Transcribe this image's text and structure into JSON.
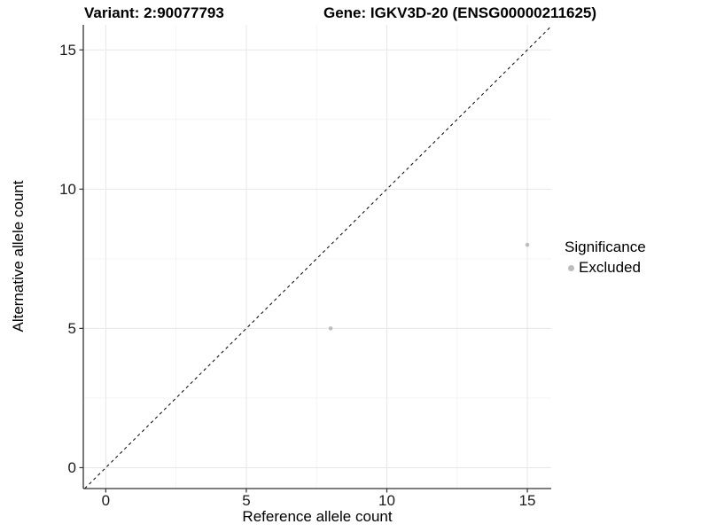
{
  "header": {
    "variant_title": "Variant: 2:90077793",
    "gene_title": "Gene: IGKV3D-20 (ENSG00000211625)"
  },
  "chart_data": {
    "type": "scatter",
    "xlabel": "Reference allele count",
    "ylabel": "Alternative allele count",
    "xlim": [
      -0.8,
      15.85
    ],
    "ylim": [
      -0.75,
      15.9
    ],
    "xticks": [
      0,
      5,
      10,
      15
    ],
    "yticks": [
      0,
      5,
      10,
      15
    ],
    "xminor": [
      2.5,
      7.5,
      12.5
    ],
    "yminor": [
      2.5,
      7.5,
      12.5
    ],
    "grid": "on",
    "identity_line": {
      "show": true,
      "slope": 1,
      "intercept": 0,
      "style": "dashed",
      "color": "#000000"
    },
    "series": [
      {
        "name": "Excluded",
        "color": "#bdbdbd",
        "point_radius": 2.3,
        "points": [
          {
            "x": 8,
            "y": 5
          },
          {
            "x": 15,
            "y": 8
          }
        ]
      }
    ],
    "legend": {
      "position": "right",
      "title": "Significance",
      "items": [
        {
          "label": "Excluded",
          "color": "#bdbdbd"
        }
      ]
    },
    "colors": {
      "grid_major": "#e7e7e7",
      "grid_minor": "#f4f4f4",
      "axis_line": "#333333",
      "tick_text": "#1a1a1a"
    }
  }
}
